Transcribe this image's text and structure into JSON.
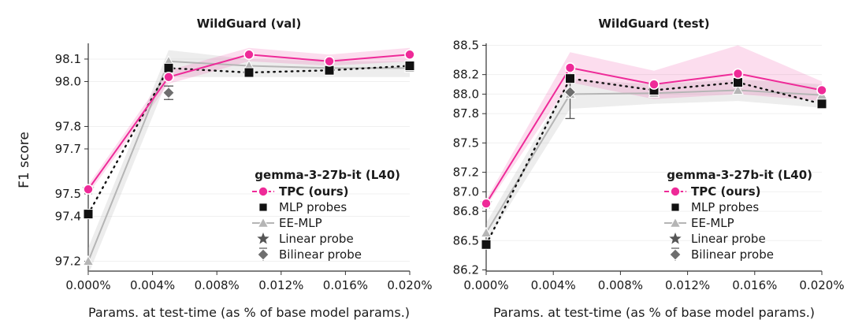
{
  "chart_data": [
    {
      "type": "line",
      "title": "WildGuard (val)",
      "xlabel": "Params. at test-time (as % of base model params.)",
      "ylabel": "F1 score",
      "xlim": [
        0.0,
        0.02
      ],
      "ylim": [
        97.17,
        98.17
      ],
      "xticks": [
        0.0,
        0.004,
        0.008,
        0.012,
        0.016,
        0.02
      ],
      "xtick_labels": [
        "0.000%",
        "0.004%",
        "0.008%",
        "0.012%",
        "0.016%",
        "0.020%"
      ],
      "yticks": [
        97.2,
        97.4,
        97.5,
        97.7,
        97.8,
        98.0,
        98.1
      ],
      "ytick_labels": [
        "97.2",
        "97.4",
        "97.5",
        "97.7",
        "97.8",
        "98.0",
        "98.1"
      ],
      "legend": {
        "title": "gemma-3-27b-it (L40)",
        "position": "lower-right",
        "entries": [
          "TPC (ours)",
          "MLP probes",
          "EE-MLP",
          "Linear probe",
          "Bilinear probe"
        ]
      },
      "series": [
        {
          "name": "TPC (ours)",
          "color": "#ee2a98",
          "marker": "circle",
          "x": [
            0.0,
            0.005,
            0.01,
            0.015,
            0.02
          ],
          "values": [
            97.52,
            98.02,
            98.12,
            98.09,
            98.12
          ],
          "band": [
            [
              97.5,
              97.54
            ],
            [
              97.99,
              98.05
            ],
            [
              98.09,
              98.15
            ],
            [
              98.07,
              98.12
            ],
            [
              98.09,
              98.15
            ]
          ]
        },
        {
          "name": "MLP probes",
          "color": "#111111",
          "marker": "square",
          "dotted_trend": true,
          "x": [
            0.0,
            0.005,
            0.01,
            0.015,
            0.02
          ],
          "values": [
            97.41,
            98.06,
            98.04,
            98.05,
            98.07
          ]
        },
        {
          "name": "EE-MLP",
          "color": "#b5b5b5",
          "marker": "triangle",
          "x": [
            0.0,
            0.005,
            0.01,
            0.015,
            0.02
          ],
          "values": [
            97.2,
            98.09,
            98.07,
            98.06,
            98.06
          ],
          "band": [
            [
              97.14,
              97.26
            ],
            [
              98.02,
              98.14
            ],
            [
              98.02,
              98.1
            ],
            [
              98.02,
              98.09
            ],
            [
              98.02,
              98.09
            ]
          ]
        },
        {
          "name": "Linear probe",
          "color": "#555555",
          "marker": "star",
          "x": [
            0.0
          ],
          "values": [
            97.52
          ]
        },
        {
          "name": "Bilinear probe",
          "color": "#6e6e6e",
          "marker": "diamond",
          "x": [
            0.005
          ],
          "values": [
            97.95
          ],
          "error": [
            [
              97.92,
              97.98
            ]
          ]
        }
      ]
    },
    {
      "type": "line",
      "title": "WildGuard (test)",
      "xlabel": "Params. at test-time (as % of base model params.)",
      "ylabel": "",
      "xlim": [
        0.0,
        0.02
      ],
      "ylim": [
        86.22,
        88.52
      ],
      "xticks": [
        0.0,
        0.004,
        0.008,
        0.012,
        0.016,
        0.02
      ],
      "xtick_labels": [
        "0.000%",
        "0.004%",
        "0.008%",
        "0.012%",
        "0.016%",
        "0.020%"
      ],
      "yticks": [
        86.2,
        86.5,
        86.8,
        87.0,
        87.2,
        87.5,
        87.8,
        88.0,
        88.2,
        88.5
      ],
      "ytick_labels": [
        "86.2",
        "86.5",
        "86.8",
        "87.0",
        "87.2",
        "87.5",
        "87.8",
        "88.0",
        "88.2",
        "88.5"
      ],
      "legend": {
        "title": "gemma-3-27b-it (L40)",
        "position": "lower-right",
        "entries": [
          "TPC (ours)",
          "MLP probes",
          "EE-MLP",
          "Linear probe",
          "Bilinear probe"
        ]
      },
      "series": [
        {
          "name": "TPC (ours)",
          "color": "#ee2a98",
          "marker": "circle",
          "x": [
            0.0,
            0.005,
            0.01,
            0.015,
            0.02
          ],
          "values": [
            86.88,
            88.27,
            88.1,
            88.21,
            88.04
          ],
          "band": [
            [
              86.85,
              86.92
            ],
            [
              88.12,
              88.43
            ],
            [
              87.95,
              88.24
            ],
            [
              88.0,
              88.5
            ],
            [
              87.93,
              88.13
            ]
          ]
        },
        {
          "name": "MLP probes",
          "color": "#111111",
          "marker": "square",
          "dotted_trend": true,
          "x": [
            0.0,
            0.005,
            0.01,
            0.015,
            0.02
          ],
          "values": [
            86.46,
            88.16,
            88.04,
            88.12,
            87.9
          ]
        },
        {
          "name": "EE-MLP",
          "color": "#b5b5b5",
          "marker": "triangle",
          "x": [
            0.0,
            0.005,
            0.01,
            0.015,
            0.02
          ],
          "values": [
            86.58,
            88.0,
            88.01,
            88.04,
            87.99
          ],
          "band": [
            [
              86.48,
              86.68
            ],
            [
              87.85,
              88.15
            ],
            [
              87.9,
              88.1
            ],
            [
              87.93,
              88.15
            ],
            [
              87.86,
              88.1
            ]
          ]
        },
        {
          "name": "Linear probe",
          "color": "#555555",
          "marker": "star",
          "x": [
            0.0
          ],
          "values": [
            86.88
          ]
        },
        {
          "name": "Bilinear probe",
          "color": "#6e6e6e",
          "marker": "diamond",
          "x": [
            0.005
          ],
          "values": [
            88.02
          ],
          "error": [
            [
              87.75,
              88.27
            ]
          ]
        }
      ]
    }
  ]
}
